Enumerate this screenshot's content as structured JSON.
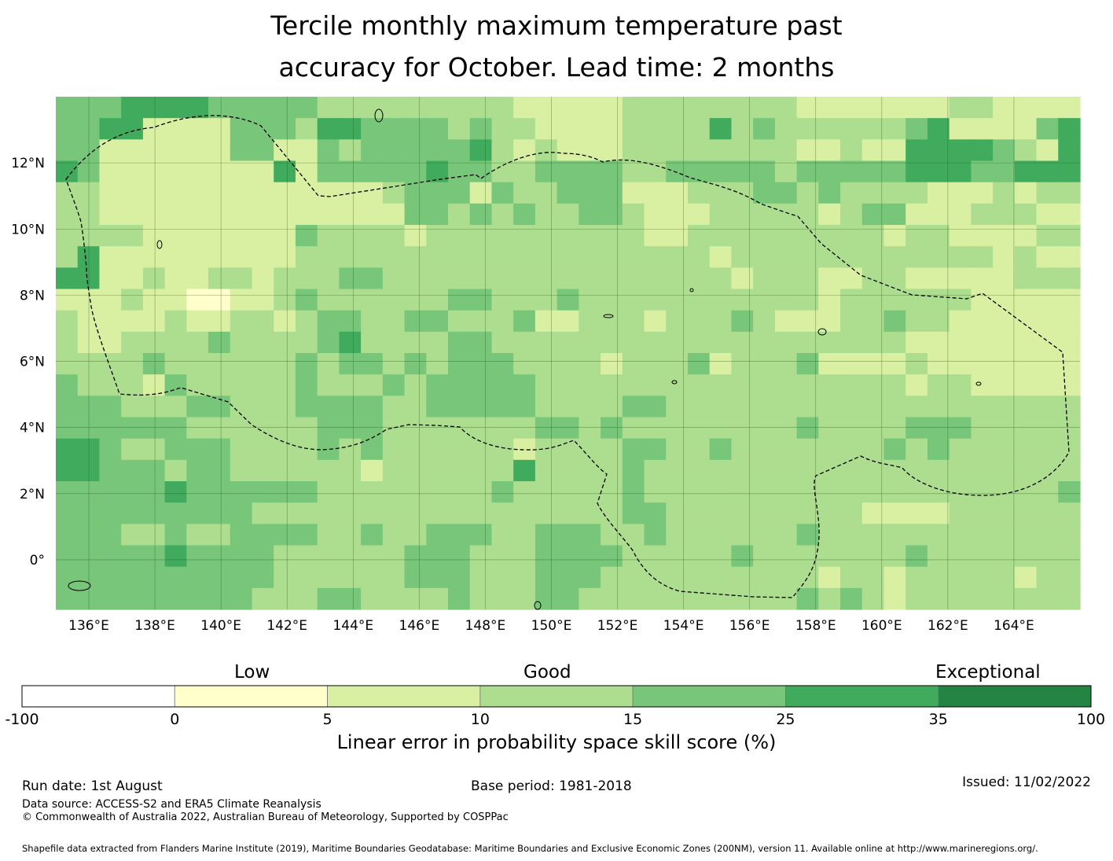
{
  "title": {
    "line1": "Tercile monthly maximum temperature past",
    "line2": "accuracy for October. Lead time: 2 months"
  },
  "map": {
    "lon_labels": [
      "136°E",
      "138°E",
      "140°E",
      "142°E",
      "144°E",
      "146°E",
      "148°E",
      "150°E",
      "152°E",
      "154°E",
      "156°E",
      "158°E",
      "160°E",
      "162°E",
      "164°E"
    ],
    "lat_labels": [
      "12°N",
      "10°N",
      "8°N",
      "6°N",
      "4°N",
      "2°N",
      "0°"
    ],
    "lon_range": [
      135,
      166
    ],
    "lat_range": [
      -1.5,
      14
    ]
  },
  "legend": {
    "categories": {
      "low": "Low",
      "good": "Good",
      "exceptional": "Exceptional"
    },
    "tick_labels": [
      "-100",
      "0",
      "5",
      "10",
      "15",
      "25",
      "35",
      "100"
    ],
    "colors": [
      "#ffffff",
      "#ffffcc",
      "#d9f0a3",
      "#addd8e",
      "#78c679",
      "#41ab5d",
      "#238443"
    ],
    "label": "Linear error in probability space skill score (%)"
  },
  "footer": {
    "run_date": "Run date: 1st August",
    "base_period": "Base period: 1981-2018",
    "issued": "Issued: 11/02/2022",
    "data_source": "Data source: ACCESS-S2 and ERA5 Climate Reanalysis",
    "copyright": "© Commonwealth of Australia 2022, Australian Bureau of Meteorology, Supported by COSPPac",
    "shapefile": "Shapefile data extracted from Flanders Marine Institute (2019), Maritime Boundaries Geodatabase: Maritime Boundaries and Exclusive Economic Zones (200NM), version 11. Available online at http://www.marineregions.org/."
  },
  "grid_rows": [
    "44455554444433333333322222333333332222222332222",
    "44552222444355444434332222333353433333345222245",
    "44222222442243444445323222333333332232255554325",
    "54222222225244444544334444334444434444455544555",
    "33222222222222234442433444222333443433332223233",
    "33222222222222224434343344322233333234422233322",
    "33332222222433332333333333322333333333233222233",
    "35222222222333333333333333333323333333333332322",
    "55223223323334433333333333333332333223322222333",
    "22232211223433333344333433333333333233333322222",
    "32222322332344334433342233323334322233433222222",
    "32233334333345333344333333333333333333322222222",
    "33334333333434434344433332333423334222232222222",
    "43332433333433343444443333333333333333323322222",
    "44433344333444433444443333443333333333333333333",
    "44444433333344433333334434333333334333344433333",
    "55433444333343433333323333443343333333434333333",
    "55444344333333233333353333433333333333333333333",
    "44444544444433333333433333433333333333333333334",
    "44444444433333333333333333443333333332222333333",
    "44433433444433433444334443343333334333333333333",
    "44444544443333334443334444333334333333343333333",
    "44444444443333334443334443333333333233233333233",
    "44444444433344333343334433333333334343233333333"
  ],
  "grid_levels": [
    "#ffffff",
    "#ffffcc",
    "#d9f0a3",
    "#addd8e",
    "#78c679",
    "#41ab5d",
    "#238443"
  ]
}
